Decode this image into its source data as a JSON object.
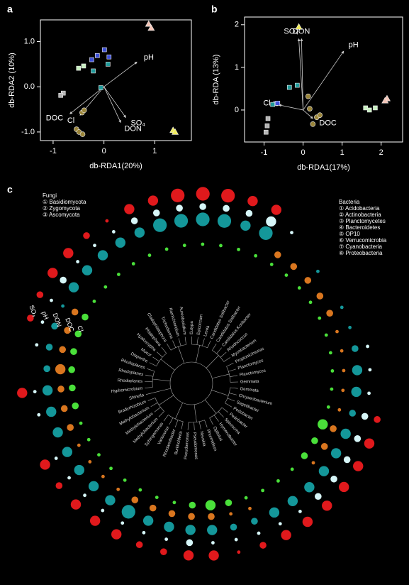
{
  "chart_data": [
    {
      "panel": "a",
      "type": "scatter",
      "xlabel": "db-RDA1(20%)",
      "ylabel": "db-RDA2 (10%)",
      "xlim": [
        -1.25,
        1.72
      ],
      "ylim": [
        -1.19,
        1.48
      ],
      "xticks": [
        -1,
        0,
        1
      ],
      "yticks": [
        {
          "value": -1,
          "label": "-1.0"
        },
        {
          "value": 0,
          "label": "0.0"
        },
        {
          "value": 1,
          "label": "1.0"
        }
      ],
      "series": [
        {
          "marker": "triangle",
          "color": "#f4c4b6",
          "x": [
            0.88,
            0.93
          ],
          "y": [
            1.39,
            1.3
          ]
        },
        {
          "marker": "triangle",
          "color": "#f2ec5c",
          "x": [
            1.36,
            1.4
          ],
          "y": [
            -0.96,
            -1.0
          ]
        },
        {
          "marker": "square",
          "color": "#3c4fd6",
          "x": [
            -0.13,
            0.01,
            0.1,
            -0.24
          ],
          "y": [
            0.69,
            0.82,
            0.66,
            0.6
          ]
        },
        {
          "marker": "square",
          "color": "#1f9a9a",
          "x": [
            0.08,
            -0.21,
            -0.06
          ],
          "y": [
            0.5,
            0.35,
            -0.02
          ]
        },
        {
          "marker": "square",
          "color": "#c8efc0",
          "x": [
            -0.5,
            -0.4
          ],
          "y": [
            0.41,
            0.46
          ]
        },
        {
          "marker": "square",
          "color": "#b4b4b4",
          "x": [
            -0.8,
            -0.85
          ],
          "y": [
            -0.14,
            -0.19
          ]
        },
        {
          "marker": "circle",
          "color": "#9a853a",
          "x": [
            -0.43,
            -0.39,
            -0.54,
            -0.49,
            -0.42
          ],
          "y": [
            -0.57,
            -0.52,
            -0.94,
            -1.0,
            -1.05
          ]
        }
      ],
      "vectors": [
        {
          "label": "pH",
          "x": 0.65,
          "y": 0.55
        },
        {
          "label": "SO₄",
          "x": 0.43,
          "y": -0.68
        },
        {
          "label": "DON",
          "x": 0.33,
          "y": -0.79
        },
        {
          "label": "DOC",
          "x": -0.67,
          "y": -0.6
        },
        {
          "label": "Cl",
          "x": -0.47,
          "y": -0.63
        }
      ]
    },
    {
      "panel": "b",
      "type": "scatter",
      "xlabel": "db-RDA1(17%)",
      "ylabel": "db-RDA (13%)",
      "xlim": [
        -1.5,
        2.55
      ],
      "ylim": [
        -0.75,
        2.18
      ],
      "xticks": [
        -1,
        0,
        1,
        2
      ],
      "yticks": [
        0,
        1,
        2
      ],
      "series": [
        {
          "marker": "triangle",
          "color": "#f4c4b6",
          "x": [
            2.15,
            2.1
          ],
          "y": [
            0.27,
            0.22
          ]
        },
        {
          "marker": "triangle",
          "color": "#f2ec5c",
          "x": [
            -0.11
          ],
          "y": [
            1.95
          ]
        },
        {
          "marker": "square",
          "color": "#3c4fd6",
          "x": [
            -0.7,
            -0.65
          ],
          "y": [
            0.15,
            0.16
          ]
        },
        {
          "marker": "square",
          "color": "#1f9a9a",
          "x": [
            -0.35,
            -0.15,
            -0.78
          ],
          "y": [
            0.53,
            0.58,
            0.13
          ]
        },
        {
          "marker": "square",
          "color": "#c8efc0",
          "x": [
            1.6,
            1.85,
            1.7
          ],
          "y": [
            0.05,
            0.05,
            0.0
          ]
        },
        {
          "marker": "square",
          "color": "#b4b4b4",
          "x": [
            -0.9,
            -0.92,
            -0.95
          ],
          "y": [
            -0.2,
            -0.37,
            -0.52
          ]
        },
        {
          "marker": "circle",
          "color": "#9a853a",
          "x": [
            0.13,
            0.17,
            0.25,
            0.35,
            0.43
          ],
          "y": [
            0.32,
            0.03,
            -0.33,
            -0.17,
            -0.12
          ]
        }
      ],
      "vectors": [
        {
          "label": "pH",
          "x": 1.04,
          "y": 1.38
        },
        {
          "label": "SO₄",
          "x": -0.11,
          "y": 1.67
        },
        {
          "label": "DON",
          "x": -0.04,
          "y": 1.67
        },
        {
          "label": "Cl",
          "x": -0.62,
          "y": 0.12
        },
        {
          "label": "DOC",
          "x": 0.25,
          "y": -0.2
        }
      ]
    },
    {
      "panel": "c",
      "type": "circular-tree",
      "legends": [
        {
          "title": "Fungi",
          "items": [
            "① Basidiomycota",
            "② Zygomycota",
            "③ Ascomycota"
          ]
        },
        {
          "title": "Bacteria",
          "items": [
            "① Acidobacteria",
            "② Actinobacteria",
            "③ Planctomycetes",
            "④ Bacteroidetes",
            "⑤ OP10",
            "⑥ Verrucomicrobia",
            "⑦ Cyanobacteria",
            "⑧ Proteobacteria"
          ]
        }
      ],
      "taxa": [
        "Hyphomicrobium",
        "Rhodoplanes",
        "Rhodoplanes",
        "Rhodoplanes",
        "Diaporthe",
        "Mucor",
        "Hyaloscypha",
        "Phialophora",
        "Cladophialophora",
        "Trichoderma",
        "Ramichloridium",
        "Aureobasidium",
        "Eutypa",
        "Epicoccum",
        "Lewia",
        "Candidatus Solibacter",
        "Candidatus Solibacter",
        "Candidatus Koribacter",
        "Rhodococcus",
        "Mycobacterium",
        "Propionicimonas",
        "Planctomyces",
        "Planctomyces",
        "Gemmata",
        "Gemmata",
        "Chryseobacterium",
        "Segetibacter",
        "Pedobacter",
        "Pedobacter",
        "Spirosoma",
        "Hymenobacter",
        "Opitutus",
        "Phormidium",
        "Nevskia",
        "Pseudomonas",
        "Pseudomonas",
        "Burkholderia",
        "Rhodanobacter",
        "Variovorax",
        "Sphingomonas",
        "Methylobacterium",
        "Methylobacterium",
        "Methylobacterium",
        "Bradyrhizobium",
        "Shinella"
      ],
      "rings": [
        {
          "name": "SO₄",
          "color": "#e0191c",
          "values": [
            3,
            0,
            0,
            2,
            2,
            3,
            3,
            2,
            1,
            3,
            3,
            4,
            4,
            4,
            3,
            3,
            0,
            0,
            0,
            0,
            0,
            0,
            0,
            0,
            0,
            2,
            3,
            3,
            3,
            3,
            3,
            3,
            2,
            1,
            3,
            3,
            2,
            2,
            3,
            3,
            3,
            2,
            3,
            0,
            0
          ]
        },
        {
          "name": "pH",
          "color": "#d6f6f8",
          "values": [
            1,
            0,
            1,
            1,
            1,
            2,
            1,
            1,
            1,
            2,
            2,
            2,
            2,
            2,
            2,
            3,
            1,
            0,
            0,
            0,
            0,
            0,
            1,
            1,
            1,
            2,
            2,
            2,
            2,
            2,
            1,
            1,
            1,
            1,
            1,
            2,
            1,
            1,
            1,
            1,
            1,
            1,
            1,
            0,
            1
          ]
        },
        {
          "name": "DON",
          "color": "#14979a",
          "values": [
            3,
            2,
            2,
            2,
            1,
            3,
            3,
            3,
            3,
            3,
            4,
            4,
            4,
            4,
            3,
            4,
            0,
            0,
            1,
            0,
            1,
            1,
            2,
            3,
            3,
            2,
            3,
            3,
            3,
            3,
            3,
            3,
            2,
            2,
            3,
            3,
            3,
            3,
            4,
            3,
            3,
            3,
            3,
            3,
            3
          ]
        },
        {
          "name": "DOC",
          "color": "#d9761f",
          "values": [
            2,
            3,
            2,
            2,
            2,
            0,
            0,
            0,
            0,
            0,
            0,
            0,
            0,
            0,
            0,
            0,
            2,
            2,
            2,
            2,
            2,
            1,
            1,
            1,
            1,
            1,
            2,
            2,
            1,
            0,
            0,
            0,
            1,
            1,
            2,
            2,
            2,
            2,
            2,
            1,
            1,
            1,
            1,
            2,
            2
          ]
        },
        {
          "name": "Cl",
          "color": "#4ae03a",
          "values": [
            2,
            2,
            2,
            2,
            2,
            1,
            1,
            1,
            1,
            1,
            1,
            1,
            1,
            1,
            1,
            1,
            1,
            1,
            1,
            1,
            1,
            1,
            1,
            1,
            1,
            1,
            3,
            2,
            2,
            1,
            1,
            1,
            1,
            2,
            3,
            2,
            1,
            1,
            1,
            1,
            1,
            1,
            1,
            1,
            2
          ]
        }
      ]
    }
  ]
}
